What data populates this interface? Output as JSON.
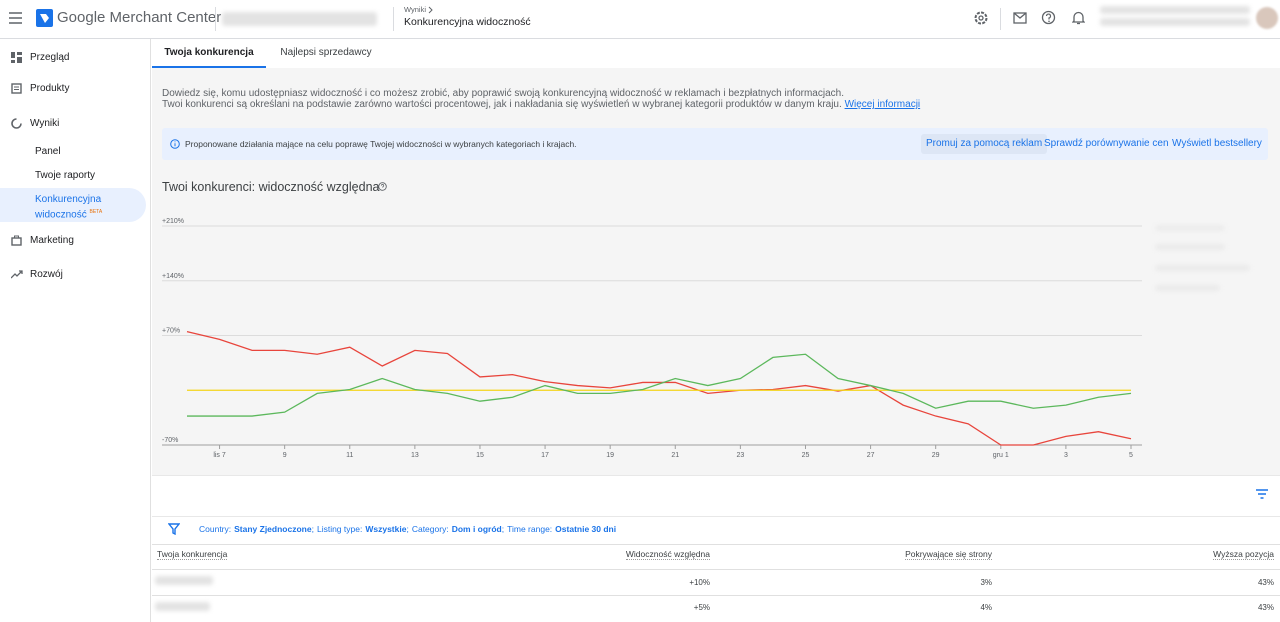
{
  "header": {
    "product": "Google Merchant Center",
    "breadcrumb_parent": "Wyniki",
    "page_title": "Konkurencyjna widoczność"
  },
  "nav": {
    "top": [
      "Przegląd",
      "Produkty",
      "Wyniki"
    ],
    "sub": [
      "Panel",
      "Twoje raporty",
      "Konkurencyjna widoczność"
    ],
    "badge": "BETA",
    "bottom": [
      "Marketing",
      "Rozwój"
    ]
  },
  "tabs": [
    "Twoja konkurencja",
    "Najlepsi sprzedawcy"
  ],
  "intro": {
    "line1": "Dowiedz się, komu udostępniasz widoczność i co możesz zrobić, aby poprawić swoją konkurencyjną widoczność w reklamach i bezpłatnych informacjach.",
    "line2": "Twoi konkurenci są określani na podstawie zarówno wartości procentowej, jak i nakładania się wyświetleń w wybranej kategorii produktów w danym kraju.",
    "link": "Więcej informacji"
  },
  "banner": {
    "text": "Proponowane działania mające na celu poprawę Twojej widoczności w wybranych kategoriach i krajach.",
    "actions": [
      "Promuj za pomocą reklam",
      "Sprawdź porównywanie cen",
      "Wyświetl bestsellery"
    ]
  },
  "chart_data": {
    "type": "line",
    "title": "Twoi konkurenci: widoczność względna",
    "categories": [
      null,
      "lis 7",
      null,
      "9",
      null,
      "11",
      null,
      "13",
      null,
      "15",
      null,
      "17",
      null,
      "19",
      null,
      "21",
      null,
      "23",
      null,
      "25",
      null,
      "27",
      null,
      "29",
      null,
      "gru 1",
      null,
      "3",
      null,
      "5"
    ],
    "series": [
      {
        "color": "#e8453c",
        "values": [
          75,
          65,
          51,
          51,
          46,
          55,
          31,
          51,
          47,
          17,
          20,
          11,
          6,
          3,
          10,
          10,
          -4,
          0,
          1,
          6,
          -1,
          6,
          -19,
          -33,
          -43,
          -70,
          -70,
          -59,
          -53,
          -62
        ]
      },
      {
        "color": "#f4d418",
        "values": [
          0,
          0,
          0,
          0,
          0,
          0,
          0,
          0,
          0,
          0,
          0,
          0,
          0,
          0,
          0,
          0,
          0,
          0,
          0,
          0,
          0,
          0,
          0,
          0,
          0,
          0,
          0,
          0,
          0,
          0
        ]
      },
      {
        "color": "#5cb85c",
        "values": [
          -33,
          -33,
          -33,
          -28,
          -4,
          1,
          15,
          1,
          -4,
          -14,
          -9,
          6,
          -4,
          -4,
          1,
          15,
          6,
          15,
          42,
          46,
          15,
          6,
          -4,
          -23,
          -14,
          -14,
          -23,
          -19,
          -9,
          -4
        ]
      }
    ],
    "ylim": [
      -70,
      210
    ],
    "yticks": [
      {
        "value": -70,
        "label": "-70%"
      },
      {
        "value": 70,
        "label": "+70%"
      },
      {
        "value": 140,
        "label": "+140%"
      },
      {
        "value": 210,
        "label": "+210%"
      }
    ],
    "grid": true
  },
  "filters": {
    "separator": ";",
    "items": [
      {
        "label": "Country:",
        "value": "Stany Zjednoczone"
      },
      {
        "label": "Listing type:",
        "value": "Wszystkie"
      },
      {
        "label": "Category:",
        "value": "Dom i ogród"
      },
      {
        "label": "Time range:",
        "value": "Ostatnie 30 dni"
      }
    ]
  },
  "table": {
    "columns": [
      "Twoja konkurencja",
      "Widoczność względna",
      "Pokrywające się strony",
      "Wyższa pozycja"
    ],
    "rows": [
      [
        "+10%",
        "3%",
        "43%"
      ],
      [
        "+5%",
        "4%",
        "43%"
      ]
    ]
  }
}
